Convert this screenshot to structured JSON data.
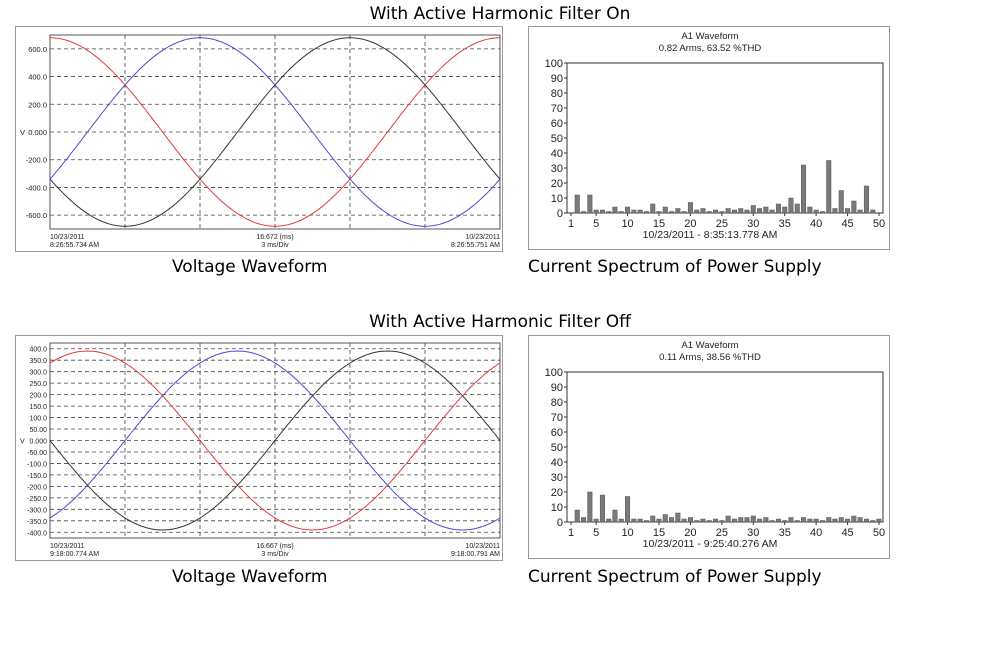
{
  "top": {
    "title": "With Active Harmonic Filter On",
    "voltage_caption": "Voltage Waveform",
    "spectrum_caption": "Current Spectrum of Power Supply"
  },
  "bottom": {
    "title": "With Active Harmonic Filter Off",
    "voltage_caption": "Voltage Waveform",
    "spectrum_caption": "Current Spectrum of Power Supply"
  },
  "colors": {
    "phase_a": "#e03c3c",
    "phase_b": "#4a4ad8",
    "phase_c": "#333333",
    "bar": "#7a7a7a"
  },
  "chart_data": [
    {
      "type": "line",
      "ylabel": "V",
      "ylim": [
        -700,
        700
      ],
      "yticks": [
        600.0,
        400.0,
        200.0,
        0.0,
        -200.0,
        -400.0,
        -600.0
      ],
      "ytick_labels": [
        "600.0",
        "400.0",
        "200.0",
        "0.000",
        "-200.0",
        "-400.0",
        "-600.0"
      ],
      "x_range_ms": [
        0,
        16.672
      ],
      "x_divisions": 6,
      "footer_left_date": "10/23/2011",
      "footer_left_time": "8:26:55.734 AM",
      "footer_mid_value": "16.672 (ms)",
      "footer_mid_div": "3 ms/Div",
      "footer_right_date": "10/23/2011",
      "footer_right_time": "8:26:55.751 AM",
      "series": [
        {
          "amplitude": 680,
          "phase_deg": 90,
          "color_key": "phase_a"
        },
        {
          "amplitude": 680,
          "phase_deg": -30,
          "color_key": "phase_b"
        },
        {
          "amplitude": 680,
          "phase_deg": 210,
          "color_key": "phase_c"
        }
      ]
    },
    {
      "type": "bar",
      "title": "A1 Waveform",
      "subtitle": "0.82 Arms, 63.52 %THD",
      "xlabel": "10/23/2011 - 8:35:13.778 AM",
      "ylim": [
        0,
        100
      ],
      "yticks": [
        0,
        10,
        20,
        30,
        40,
        50,
        60,
        70,
        80,
        90,
        100
      ],
      "xticks": [
        1,
        5,
        10,
        15,
        20,
        25,
        30,
        35,
        40,
        45,
        50
      ],
      "harmonics": [
        2,
        3,
        4,
        5,
        6,
        7,
        8,
        9,
        10,
        11,
        12,
        13,
        14,
        15,
        16,
        17,
        18,
        19,
        20,
        21,
        22,
        23,
        24,
        25,
        26,
        27,
        28,
        29,
        30,
        31,
        32,
        33,
        34,
        35,
        36,
        37,
        38,
        39,
        40,
        41,
        42,
        43,
        44,
        45,
        46,
        47,
        48,
        49,
        50
      ],
      "values": [
        12,
        1,
        12,
        2,
        2,
        1,
        4,
        1,
        4,
        2,
        2,
        1,
        6,
        1,
        4,
        1,
        3,
        1,
        7,
        2,
        3,
        1,
        2,
        1,
        3,
        2,
        3,
        2,
        5,
        3,
        4,
        2,
        6,
        4,
        10,
        6,
        32,
        4,
        2,
        1,
        35,
        3,
        15,
        3,
        8,
        2,
        18,
        2,
        0
      ]
    },
    {
      "type": "line",
      "ylabel": "V",
      "ylim": [
        -425,
        425
      ],
      "yticks": [
        400,
        350,
        300,
        250,
        200,
        150,
        100,
        50,
        0,
        -50,
        -100,
        -150,
        -200,
        -250,
        -300,
        -350,
        -400
      ],
      "ytick_labels": [
        "400.0",
        "350.0",
        "300.0",
        "250.0",
        "200.0",
        "150.0",
        "100.0",
        "50.00",
        "0.000",
        "-50.00",
        "-100.0",
        "-150.0",
        "-200.0",
        "-250.0",
        "-300.0",
        "-350.0",
        "-400.0"
      ],
      "x_range_ms": [
        0,
        16.667
      ],
      "x_divisions": 6,
      "footer_left_date": "10/23/2011",
      "footer_left_time": "9:18:00.774 AM",
      "footer_mid_value": "16.667 (ms)",
      "footer_mid_div": "3 ms/Div",
      "footer_right_date": "10/23/2011",
      "footer_right_time": "9:18:00.791 AM",
      "series": [
        {
          "amplitude": 390,
          "phase_deg": 60,
          "color_key": "phase_a"
        },
        {
          "amplitude": 390,
          "phase_deg": -60,
          "color_key": "phase_b"
        },
        {
          "amplitude": 390,
          "phase_deg": 180,
          "color_key": "phase_c"
        }
      ]
    },
    {
      "type": "bar",
      "title": "A1 Waveform",
      "subtitle": "0.11 Arms, 38.56 %THD",
      "xlabel": "10/23/2011 - 9:25:40.276 AM",
      "ylim": [
        0,
        100
      ],
      "yticks": [
        0,
        10,
        20,
        30,
        40,
        50,
        60,
        70,
        80,
        90,
        100
      ],
      "xticks": [
        1,
        5,
        10,
        15,
        20,
        25,
        30,
        35,
        40,
        45,
        50
      ],
      "harmonics": [
        2,
        3,
        4,
        5,
        6,
        7,
        8,
        9,
        10,
        11,
        12,
        13,
        14,
        15,
        16,
        17,
        18,
        19,
        20,
        21,
        22,
        23,
        24,
        25,
        26,
        27,
        28,
        29,
        30,
        31,
        32,
        33,
        34,
        35,
        36,
        37,
        38,
        39,
        40,
        41,
        42,
        43,
        44,
        45,
        46,
        47,
        48,
        49,
        50
      ],
      "values": [
        8,
        3,
        20,
        2,
        18,
        2,
        8,
        2,
        17,
        2,
        2,
        1,
        4,
        2,
        5,
        3,
        6,
        2,
        3,
        1,
        2,
        1,
        2,
        1,
        4,
        2,
        3,
        3,
        4,
        2,
        3,
        1,
        2,
        1,
        3,
        1,
        3,
        2,
        2,
        1,
        3,
        2,
        3,
        2,
        4,
        3,
        2,
        1,
        2
      ]
    }
  ]
}
